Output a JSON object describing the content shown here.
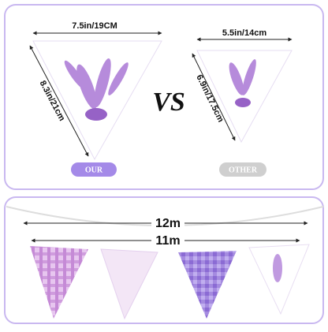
{
  "comparison": {
    "ours": {
      "width": "7.5in/19CM",
      "height": "8.3in/21cm",
      "label": "OUR"
    },
    "vs": "VS",
    "other": {
      "width": "5.5in/14cm",
      "height": "6.9in/17.5cm",
      "label": "OTHER"
    }
  },
  "length": {
    "outer": "12m",
    "inner": "11m"
  }
}
